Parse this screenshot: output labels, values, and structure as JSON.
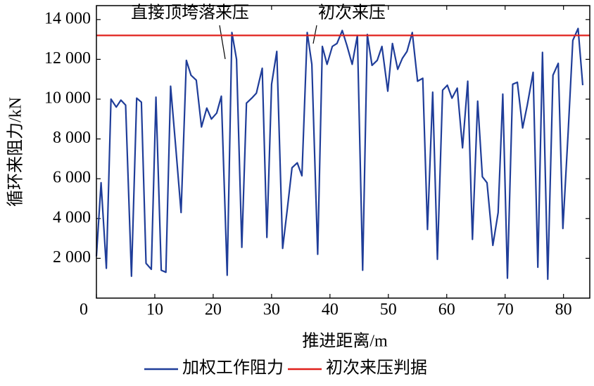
{
  "chart_data": {
    "type": "line",
    "xlabel": "推进距离/m",
    "ylabel": "循环来阻力/kN",
    "annotations": [
      "直接顶垮落来压",
      "初次来压"
    ],
    "xlim": [
      0,
      84.5
    ],
    "xticks": [
      0,
      10,
      20,
      30,
      40,
      50,
      60,
      70,
      80
    ],
    "ylim": [
      0,
      14700
    ],
    "yticks": [
      {
        "value": 2000,
        "label": "2 000"
      },
      {
        "value": 4000,
        "label": "4 000"
      },
      {
        "value": 6000,
        "label": "6 000"
      },
      {
        "value": 8000,
        "label": "8 000"
      },
      {
        "value": 10000,
        "label": "10 000"
      },
      {
        "value": 12000,
        "label": "12 000"
      },
      {
        "value": 14000,
        "label": "14 000"
      }
    ],
    "legend": "bottom",
    "series": [
      {
        "name": "加权工作阻力",
        "color": "#1f3d99",
        "x": [
          0,
          0.8,
          1.7,
          2.5,
          3.4,
          4.2,
          5.0,
          6.0,
          6.9,
          7.7,
          8.5,
          9.4,
          10.2,
          11.1,
          11.9,
          12.7,
          13.6,
          14.5,
          15.4,
          16.2,
          17.1,
          18.0,
          18.9,
          19.7,
          20.6,
          21.4,
          22.4,
          23.2,
          24.0,
          24.9,
          25.7,
          26.6,
          27.4,
          28.4,
          29.2,
          30.0,
          30.9,
          31.9,
          32.7,
          33.5,
          34.4,
          35.2,
          36.1,
          36.9,
          37.9,
          38.7,
          39.5,
          40.4,
          41.2,
          42.1,
          42.9,
          43.8,
          44.7,
          45.6,
          46.4,
          47.2,
          48.1,
          48.9,
          49.9,
          50.7,
          51.6,
          52.4,
          53.2,
          54.1,
          55.0,
          55.9,
          56.7,
          57.6,
          58.4,
          59.3,
          60.1,
          60.9,
          61.8,
          62.7,
          63.6,
          64.4,
          65.3,
          66.1,
          66.9,
          67.9,
          68.8,
          69.6,
          70.4,
          71.3,
          72.1,
          73.0,
          73.8,
          74.8,
          75.6,
          76.4,
          77.3,
          78.2,
          79.1,
          79.9,
          80.8,
          81.6,
          82.5,
          83.3
        ],
        "values": [
          2100,
          5800,
          1500,
          10000,
          9600,
          9950,
          9700,
          1100,
          10050,
          9850,
          1750,
          1450,
          10100,
          1400,
          1300,
          10650,
          7550,
          4300,
          11950,
          11200,
          10950,
          8600,
          9550,
          9000,
          9300,
          10150,
          1150,
          13350,
          12000,
          2550,
          9800,
          10050,
          10300,
          11550,
          3050,
          10750,
          12400,
          2500,
          4500,
          6550,
          6800,
          6150,
          13350,
          11750,
          2200,
          12650,
          11750,
          12650,
          12800,
          13450,
          12700,
          11750,
          13200,
          1400,
          13250,
          11700,
          11950,
          12650,
          10400,
          12800,
          11500,
          12050,
          12400,
          13350,
          10900,
          11050,
          3450,
          10350,
          1950,
          10450,
          10700,
          10050,
          10550,
          7550,
          10900,
          2950,
          9900,
          6100,
          5800,
          2650,
          4300,
          10250,
          1000,
          10750,
          10850,
          8550,
          9700,
          11350,
          1550,
          12350,
          950,
          11200,
          11800,
          3500,
          8350,
          12950,
          13550,
          10700
        ]
      },
      {
        "name": "初次来压判据",
        "color": "#e0201b",
        "x": [
          0,
          84.5
        ],
        "values": [
          13200,
          13200
        ]
      }
    ]
  }
}
